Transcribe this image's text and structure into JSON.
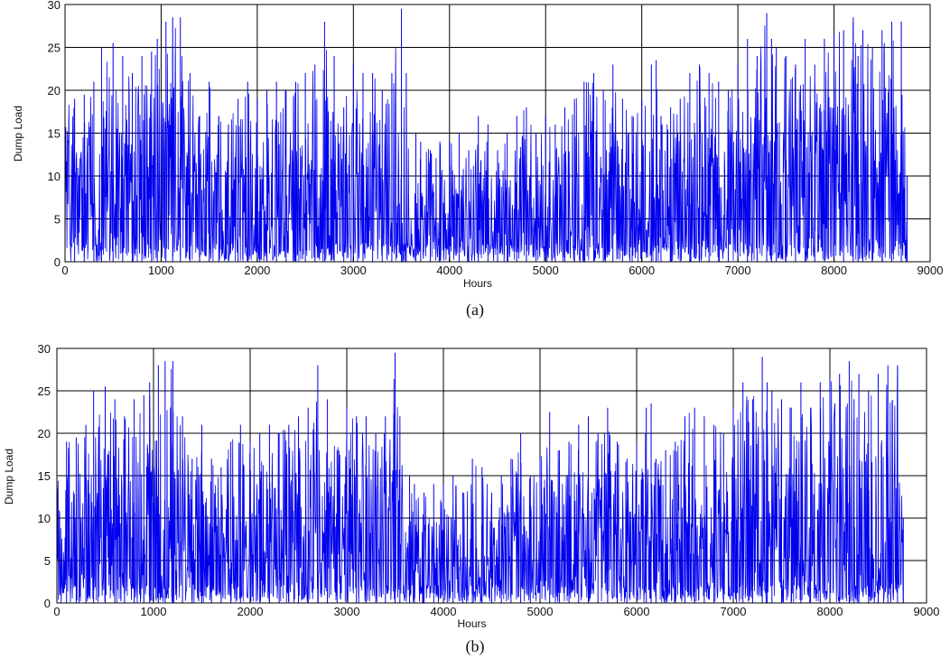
{
  "chart_data": [
    {
      "type": "line",
      "caption": "(a)",
      "xlabel": "Hours",
      "ylabel": "Dump Load",
      "xlim": [
        0,
        9000
      ],
      "ylim": [
        0,
        30
      ],
      "xticks": [
        0,
        1000,
        2000,
        3000,
        4000,
        5000,
        6000,
        7000,
        8000,
        9000
      ],
      "yticks": [
        0,
        5,
        10,
        15,
        20,
        25,
        30
      ],
      "grid": true,
      "line_color": "#0000ee",
      "series": [
        {
          "x": [
            0,
            100,
            200,
            300,
            380,
            500,
            600,
            700,
            800,
            900,
            960,
            1050,
            1120,
            1200,
            1300,
            1400,
            1500,
            1600,
            1700,
            1800,
            1900,
            2000,
            2100,
            2200,
            2300,
            2400,
            2500,
            2600,
            2700,
            2800,
            2900,
            3000,
            3100,
            3200,
            3300,
            3400,
            3500,
            3550,
            3650,
            3700,
            3800,
            3900,
            4000,
            4100,
            4200,
            4300,
            4400,
            4500,
            4600,
            4700,
            4800,
            4900,
            5000,
            5100,
            5200,
            5300,
            5400,
            5500,
            5600,
            5700,
            5800,
            5900,
            6000,
            6100,
            6150,
            6200,
            6300,
            6400,
            6500,
            6600,
            6700,
            6800,
            6900,
            7000,
            7100,
            7200,
            7300,
            7350,
            7400,
            7500,
            7600,
            7700,
            7800,
            7900,
            8000,
            8100,
            8200,
            8250,
            8300,
            8400,
            8500,
            8600,
            8700,
            8760
          ],
          "y": [
            21,
            19,
            19.5,
            21,
            25,
            25.5,
            24,
            22,
            24,
            24.5,
            26,
            28,
            28.5,
            28.5,
            22,
            17,
            21,
            17,
            16,
            19,
            21,
            19,
            20,
            21,
            20,
            21,
            22,
            23,
            28,
            24,
            18,
            23,
            22,
            22,
            20,
            22,
            29.5,
            22,
            15,
            14,
            13,
            14,
            14,
            15,
            13,
            17,
            16,
            13,
            15,
            17,
            18,
            15,
            17,
            16,
            18,
            19,
            21,
            22,
            20,
            23,
            19,
            17,
            19,
            23,
            23.5,
            17,
            18,
            19,
            22,
            23,
            22,
            21,
            20,
            23,
            26,
            24,
            29,
            26,
            25,
            24,
            23,
            26,
            23,
            26,
            26.5,
            27,
            28.5,
            24,
            27,
            25,
            27,
            28,
            28,
            10
          ]
        }
      ]
    },
    {
      "type": "line",
      "caption": "(b)",
      "xlabel": "Hours",
      "ylabel": "Dump Load",
      "xlim": [
        0,
        9000
      ],
      "ylim": [
        0,
        30
      ],
      "xticks": [
        0,
        1000,
        2000,
        3000,
        4000,
        5000,
        6000,
        7000,
        8000,
        9000
      ],
      "yticks": [
        0,
        5,
        10,
        15,
        20,
        25,
        30
      ],
      "grid": true,
      "line_color": "#0000ee",
      "series": [
        {
          "x": [
            0,
            100,
            200,
            300,
            380,
            500,
            600,
            700,
            800,
            900,
            960,
            1050,
            1120,
            1200,
            1300,
            1400,
            1500,
            1600,
            1700,
            1800,
            1900,
            2000,
            2100,
            2200,
            2300,
            2400,
            2500,
            2600,
            2700,
            2800,
            2900,
            3000,
            3100,
            3200,
            3300,
            3400,
            3500,
            3550,
            3650,
            3700,
            3800,
            3900,
            4000,
            4100,
            4200,
            4300,
            4400,
            4500,
            4600,
            4700,
            4800,
            4900,
            5000,
            5100,
            5200,
            5300,
            5400,
            5500,
            5600,
            5700,
            5800,
            5900,
            6000,
            6100,
            6150,
            6200,
            6300,
            6400,
            6500,
            6600,
            6700,
            6800,
            6900,
            7000,
            7100,
            7200,
            7300,
            7350,
            7400,
            7500,
            7600,
            7700,
            7800,
            7900,
            8000,
            8100,
            8200,
            8250,
            8300,
            8400,
            8500,
            8600,
            8700,
            8760
          ],
          "y": [
            21,
            19,
            19.5,
            21,
            25,
            25.5,
            24,
            22,
            24,
            24.5,
            26,
            28,
            28.5,
            28.5,
            22,
            17,
            21,
            17,
            16,
            19,
            21,
            19,
            20,
            21,
            20,
            21,
            22,
            23,
            28,
            24,
            18,
            23,
            22,
            22,
            20,
            22,
            29.5,
            22,
            15,
            14,
            13,
            14,
            14,
            15,
            13,
            17,
            16,
            13,
            15,
            17,
            20,
            15,
            17,
            22.5,
            18,
            19,
            21,
            22,
            20,
            23,
            19,
            17,
            19,
            23,
            23.5,
            17,
            18,
            19,
            22,
            23,
            22,
            21,
            20,
            23,
            26,
            24,
            29,
            26,
            25,
            24,
            23,
            26,
            23,
            26,
            26.5,
            27,
            28.5,
            24,
            27,
            25,
            27,
            28,
            28,
            10
          ]
        }
      ]
    }
  ]
}
